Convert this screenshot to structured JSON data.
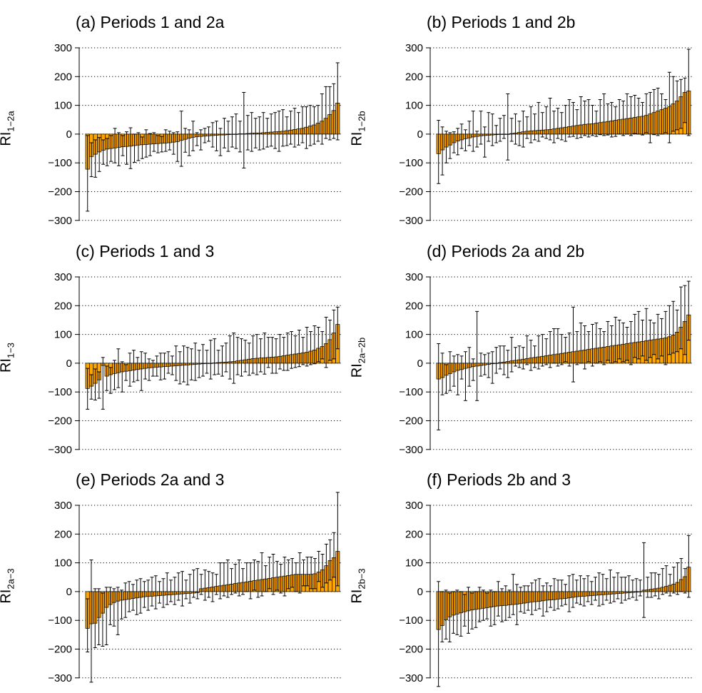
{
  "colors": {
    "bar_fill": "#FFA500",
    "bar_stroke": "#000000",
    "grid": "#000000"
  },
  "chart_data": [
    {
      "type": "bar",
      "title": "(a) Periods 1 and 2a",
      "ylabel_base": "RI",
      "ylabel_sub": "1−2a",
      "ylim": [
        -300,
        300
      ],
      "yticks": [
        "300",
        "200",
        "100",
        "0",
        "−100",
        "−200",
        "−300"
      ],
      "grid": "horizontal dotted",
      "values": [
        -122,
        -78,
        -70,
        -62,
        -56,
        -52,
        -50,
        -48,
        -46,
        -44,
        -43,
        -42,
        -40,
        -38,
        -37,
        -36,
        -35,
        -34,
        -33,
        -32,
        -31,
        -30,
        -28,
        -26,
        -22,
        -18,
        -14,
        -11,
        -9,
        -8,
        -7,
        -6,
        -5,
        -4,
        -3,
        -3,
        -2,
        -1,
        0,
        1,
        1,
        2,
        3,
        4,
        4,
        5,
        6,
        7,
        8,
        9,
        10,
        12,
        14,
        16,
        18,
        20,
        24,
        28,
        32,
        38,
        45,
        55,
        68,
        82,
        108
      ],
      "upper": [
        -5,
        -30,
        -20,
        -12,
        -20,
        -15,
        -5,
        20,
        5,
        -5,
        8,
        22,
        0,
        5,
        -10,
        15,
        2,
        5,
        -5,
        -8,
        15,
        10,
        5,
        8,
        80,
        20,
        15,
        45,
        5,
        15,
        20,
        25,
        40,
        45,
        20,
        55,
        45,
        60,
        70,
        45,
        145,
        65,
        75,
        55,
        60,
        75,
        55,
        70,
        75,
        80,
        85,
        60,
        80,
        90,
        75,
        95,
        95,
        100,
        95,
        100,
        140,
        165,
        165,
        175,
        248
      ],
      "lower": [
        -268,
        -148,
        -150,
        -130,
        -105,
        -110,
        -95,
        -100,
        -110,
        -75,
        -105,
        -120,
        -98,
        -92,
        -85,
        -80,
        -75,
        -60,
        -65,
        -62,
        -60,
        -55,
        -70,
        -95,
        -112,
        -63,
        -75,
        -58,
        -40,
        -55,
        -30,
        -25,
        -45,
        -58,
        -75,
        -48,
        -60,
        -45,
        -50,
        -62,
        -118,
        -55,
        -60,
        -48,
        -55,
        -52,
        -45,
        -42,
        -50,
        -60,
        -42,
        -40,
        -35,
        -45,
        -38,
        -30,
        -50,
        -40,
        -35,
        -25,
        -35,
        -15,
        -20,
        -15,
        -20
      ]
    },
    {
      "type": "bar",
      "title": "(b) Periods 1 and 2b",
      "ylabel_base": "RI",
      "ylabel_sub": "1−2b",
      "ylim": [
        -300,
        300
      ],
      "yticks": [
        "300",
        "200",
        "100",
        "0",
        "−100",
        "−200",
        "−300"
      ],
      "grid": "horizontal dotted",
      "values": [
        -68,
        -55,
        -45,
        -38,
        -30,
        -24,
        -20,
        -16,
        -13,
        -10,
        -8,
        -6,
        -5,
        -4,
        -3,
        -2,
        -1,
        0,
        0,
        2,
        4,
        6,
        8,
        10,
        11,
        12,
        13,
        14,
        15,
        16,
        18,
        20,
        22,
        24,
        26,
        28,
        30,
        32,
        34,
        35,
        36,
        38,
        40,
        42,
        44,
        46,
        48,
        50,
        52,
        54,
        56,
        58,
        60,
        62,
        65,
        70,
        75,
        80,
        85,
        90,
        95,
        105,
        115,
        130,
        145,
        150
      ],
      "upper": [
        48,
        25,
        10,
        5,
        8,
        20,
        35,
        15,
        45,
        80,
        10,
        80,
        25,
        75,
        70,
        30,
        55,
        65,
        140,
        55,
        70,
        45,
        80,
        60,
        95,
        70,
        110,
        75,
        95,
        125,
        80,
        90,
        75,
        100,
        120,
        110,
        85,
        130,
        115,
        120,
        100,
        80,
        120,
        140,
        105,
        110,
        95,
        120,
        115,
        140,
        130,
        135,
        125,
        110,
        140,
        145,
        155,
        160,
        140,
        120,
        215,
        200,
        185,
        190,
        195,
        295
      ],
      "lower": [
        -172,
        -142,
        -100,
        -85,
        -65,
        -72,
        -50,
        -58,
        -40,
        -60,
        -45,
        -35,
        -80,
        -25,
        -40,
        -30,
        -25,
        -15,
        -90,
        -25,
        -35,
        -40,
        -45,
        -15,
        -30,
        -20,
        -25,
        -10,
        -15,
        -20,
        -30,
        -15,
        -20,
        -25,
        -10,
        -8,
        -15,
        -12,
        -5,
        -10,
        -5,
        -8,
        -2,
        -5,
        -3,
        -10,
        -8,
        0,
        -5,
        0,
        -5,
        2,
        0,
        -3,
        5,
        -30,
        -2,
        -5,
        0,
        5,
        -30,
        10,
        15,
        20,
        40,
        -5
      ]
    },
    {
      "type": "bar",
      "title": "(c) Periods 1 and 3",
      "ylabel_base": "RI",
      "ylabel_sub": "1−3",
      "ylim": [
        -300,
        300
      ],
      "yticks": [
        "300",
        "200",
        "100",
        "0",
        "−100",
        "−200",
        "−300"
      ],
      "grid": "horizontal dotted",
      "values": [
        -88,
        -80,
        -70,
        -58,
        -8,
        -45,
        -40,
        -36,
        -33,
        -30,
        -28,
        -26,
        -24,
        -22,
        -20,
        -18,
        -16,
        -15,
        -14,
        -13,
        -12,
        -11,
        -10,
        -9,
        -8,
        -7,
        -6,
        -5,
        -4,
        -3,
        -2,
        -1,
        0,
        1,
        2,
        3,
        4,
        5,
        6,
        8,
        10,
        12,
        14,
        16,
        17,
        18,
        19,
        20,
        21,
        22,
        24,
        26,
        28,
        30,
        32,
        34,
        36,
        38,
        42,
        46,
        52,
        58,
        68,
        82,
        105,
        135
      ],
      "upper": [
        -18,
        -40,
        -20,
        -30,
        20,
        -10,
        -15,
        10,
        50,
        5,
        -5,
        35,
        45,
        20,
        40,
        35,
        15,
        10,
        25,
        35,
        35,
        40,
        25,
        60,
        40,
        60,
        55,
        50,
        70,
        45,
        65,
        45,
        80,
        85,
        45,
        60,
        70,
        95,
        105,
        90,
        85,
        80,
        70,
        95,
        100,
        85,
        105,
        90,
        90,
        85,
        100,
        90,
        105,
        110,
        95,
        115,
        90,
        125,
        110,
        130,
        125,
        110,
        160,
        150,
        185,
        195
      ],
      "lower": [
        -160,
        -125,
        -128,
        -122,
        -160,
        -95,
        -105,
        -92,
        -85,
        -100,
        -60,
        -80,
        -65,
        -60,
        -95,
        -55,
        -60,
        -45,
        -45,
        -58,
        -55,
        -35,
        -40,
        -60,
        -72,
        -65,
        -75,
        -58,
        -60,
        -50,
        -45,
        -35,
        -55,
        -40,
        -38,
        -45,
        -30,
        -55,
        -70,
        -40,
        -45,
        -30,
        -42,
        -35,
        -40,
        -30,
        -38,
        -15,
        -35,
        -35,
        -20,
        -25,
        -25,
        -18,
        -15,
        -12,
        -5,
        -10,
        -5,
        -2,
        5,
        15,
        -15,
        10,
        15,
        50
      ]
    },
    {
      "type": "bar",
      "title": "(d) Periods 2a and 2b",
      "ylabel_base": "RI",
      "ylabel_sub": "2a−2b",
      "ylim": [
        -300,
        300
      ],
      "yticks": [
        "300",
        "200",
        "100",
        "0",
        "−100",
        "−200",
        "−300"
      ],
      "grid": "horizontal dotted",
      "values": [
        -55,
        -50,
        -42,
        -36,
        -30,
        -25,
        -22,
        -18,
        -15,
        -12,
        -10,
        -8,
        -6,
        -4,
        -2,
        0,
        2,
        4,
        6,
        8,
        10,
        12,
        14,
        16,
        18,
        20,
        22,
        24,
        26,
        28,
        30,
        32,
        34,
        36,
        38,
        40,
        42,
        44,
        46,
        48,
        50,
        52,
        54,
        56,
        58,
        60,
        62,
        64,
        66,
        68,
        70,
        72,
        74,
        76,
        78,
        80,
        82,
        84,
        86,
        88,
        92,
        98,
        108,
        125,
        145,
        168
      ],
      "upper": [
        68,
        35,
        -5,
        40,
        25,
        30,
        25,
        40,
        55,
        15,
        180,
        35,
        30,
        35,
        40,
        55,
        60,
        60,
        45,
        90,
        55,
        60,
        55,
        95,
        80,
        60,
        95,
        100,
        85,
        110,
        120,
        120,
        100,
        90,
        105,
        195,
        110,
        140,
        130,
        110,
        135,
        140,
        120,
        110,
        145,
        130,
        160,
        150,
        140,
        125,
        145,
        170,
        180,
        150,
        190,
        150,
        140,
        170,
        155,
        180,
        200,
        215,
        185,
        265,
        270,
        285
      ],
      "lower": [
        -232,
        -110,
        -105,
        -95,
        -80,
        -110,
        -55,
        -130,
        -80,
        -60,
        -130,
        -45,
        -40,
        -50,
        -70,
        -35,
        -20,
        -40,
        -50,
        -30,
        -10,
        -15,
        -20,
        -5,
        -25,
        -15,
        -20,
        -10,
        -5,
        -15,
        0,
        -10,
        -5,
        5,
        -10,
        -65,
        -5,
        0,
        -20,
        5,
        -10,
        0,
        5,
        -5,
        10,
        0,
        5,
        15,
        5,
        10,
        -5,
        20,
        15,
        25,
        10,
        20,
        30,
        15,
        25,
        -5,
        30,
        35,
        40,
        50,
        30,
        80
      ]
    },
    {
      "type": "bar",
      "title": "(e) Periods 2a and 3",
      "ylabel_base": "RI",
      "ylabel_sub": "2a−3",
      "ylim": [
        -300,
        300
      ],
      "yticks": [
        "300",
        "200",
        "100",
        "0",
        "−100",
        "−200",
        "−300"
      ],
      "grid": "horizontal dotted",
      "values": [
        -128,
        -112,
        -110,
        -90,
        -75,
        -55,
        -45,
        -38,
        -33,
        -30,
        -28,
        -26,
        -24,
        -22,
        -20,
        -18,
        -17,
        -16,
        -15,
        -14,
        -13,
        -12,
        -11,
        -10,
        -9,
        -8,
        -7,
        -6,
        -5,
        -4,
        10,
        12,
        14,
        16,
        18,
        20,
        22,
        24,
        26,
        28,
        30,
        32,
        34,
        36,
        38,
        40,
        42,
        44,
        46,
        48,
        50,
        52,
        54,
        56,
        58,
        60,
        60,
        60,
        60,
        60,
        62,
        68,
        76,
        90,
        108,
        118,
        140
      ],
      "upper": [
        -25,
        110,
        10,
        10,
        -5,
        15,
        15,
        10,
        15,
        5,
        30,
        35,
        25,
        40,
        45,
        35,
        40,
        50,
        55,
        35,
        45,
        65,
        40,
        50,
        65,
        70,
        40,
        60,
        75,
        80,
        60,
        75,
        70,
        65,
        60,
        100,
        100,
        110,
        80,
        95,
        110,
        80,
        100,
        100,
        110,
        105,
        135,
        90,
        120,
        130,
        105,
        95,
        120,
        110,
        115,
        100,
        135,
        110,
        120,
        120,
        115,
        140,
        130,
        165,
        180,
        205,
        345
      ],
      "lower": [
        -210,
        -315,
        -195,
        -185,
        -190,
        -185,
        -115,
        -120,
        -150,
        -95,
        -90,
        -70,
        -65,
        -80,
        -75,
        -55,
        -65,
        -50,
        -60,
        -40,
        -55,
        -45,
        -35,
        -45,
        -30,
        -50,
        -25,
        -40,
        -20,
        -25,
        -10,
        -30,
        -20,
        -35,
        -10,
        -25,
        -15,
        -20,
        -10,
        -5,
        -15,
        -10,
        0,
        -25,
        5,
        -20,
        -15,
        0,
        10,
        -10,
        5,
        -5,
        -15,
        10,
        15,
        0,
        -5,
        20,
        20,
        10,
        10,
        35,
        15,
        30,
        40,
        50,
        20
      ]
    },
    {
      "type": "bar",
      "title": "(f) Periods 2b and 3",
      "ylabel_base": "RI",
      "ylabel_sub": "2b−3",
      "ylim": [
        -300,
        300
      ],
      "yticks": [
        "300",
        "200",
        "100",
        "0",
        "−100",
        "−200",
        "−300"
      ],
      "grid": "horizontal dotted",
      "values": [
        -132,
        -118,
        -98,
        -88,
        -82,
        -78,
        -74,
        -70,
        -67,
        -64,
        -62,
        -60,
        -58,
        -56,
        -54,
        -52,
        -50,
        -49,
        -48,
        -46,
        -45,
        -44,
        -42,
        -40,
        -38,
        -36,
        -35,
        -34,
        -32,
        -30,
        -29,
        -28,
        -26,
        -25,
        -24,
        -22,
        -20,
        -18,
        -17,
        -16,
        -15,
        -14,
        -13,
        -12,
        -11,
        -10,
        -9,
        -8,
        -7,
        -6,
        -5,
        -4,
        -3,
        -2,
        -1,
        5,
        6,
        8,
        10,
        12,
        15,
        18,
        22,
        26,
        32,
        42,
        52,
        85
      ],
      "upper": [
        35,
        0,
        5,
        -5,
        0,
        5,
        0,
        -10,
        15,
        -5,
        0,
        15,
        5,
        -5,
        5,
        0,
        35,
        10,
        20,
        5,
        60,
        25,
        15,
        20,
        20,
        30,
        40,
        45,
        20,
        30,
        20,
        45,
        40,
        40,
        25,
        55,
        60,
        40,
        55,
        45,
        55,
        35,
        50,
        65,
        60,
        45,
        75,
        50,
        65,
        50,
        50,
        55,
        40,
        45,
        40,
        170,
        50,
        65,
        65,
        60,
        80,
        90,
        60,
        85,
        100,
        115,
        80,
        195
      ],
      "lower": [
        -330,
        -175,
        -165,
        -175,
        -145,
        -150,
        -155,
        -120,
        -145,
        -130,
        -125,
        -105,
        -100,
        -95,
        -120,
        -115,
        -85,
        -105,
        -100,
        -90,
        -80,
        -115,
        -70,
        -75,
        -65,
        -80,
        -65,
        -60,
        -85,
        -70,
        -55,
        -65,
        -60,
        -50,
        -45,
        -70,
        -55,
        -40,
        -45,
        -50,
        -35,
        -45,
        -30,
        -50,
        -45,
        -30,
        -40,
        -35,
        -25,
        -40,
        -30,
        -25,
        -20,
        -30,
        -15,
        -90,
        -20,
        -20,
        -15,
        -25,
        -10,
        -5,
        -15,
        -5,
        -10,
        0,
        -5,
        -20
      ]
    }
  ]
}
